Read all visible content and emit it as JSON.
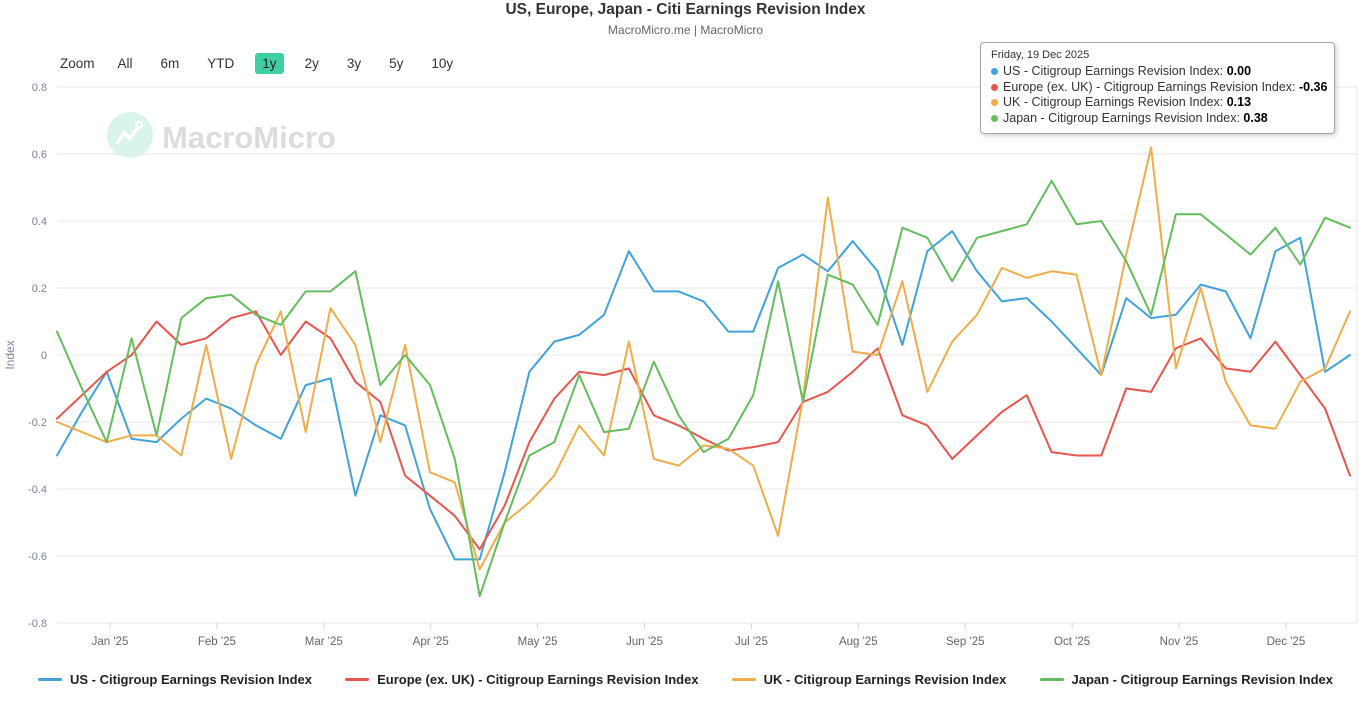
{
  "header": {
    "title": "US, Europe, Japan - Citi Earnings Revision Index",
    "subtitle": "MacroMicro.me | MacroMicro"
  },
  "toolbar": {
    "zoom_label": "Zoom",
    "ranges": [
      {
        "label": "All",
        "selected": false
      },
      {
        "label": "6m",
        "selected": false
      },
      {
        "label": "YTD",
        "selected": false
      },
      {
        "label": "1y",
        "selected": true
      },
      {
        "label": "2y",
        "selected": false
      },
      {
        "label": "3y",
        "selected": false
      },
      {
        "label": "5y",
        "selected": false
      },
      {
        "label": "10y",
        "selected": false
      }
    ]
  },
  "watermark": {
    "text": "MacroMicro"
  },
  "tooltip": {
    "date": "Friday, 19 Dec 2025",
    "items": [
      {
        "name": "US - Citigroup Earnings Revision Index",
        "value": "0.00",
        "color": "#41A3DC"
      },
      {
        "name": "Europe (ex. UK) - Citigroup Earnings Revision Index",
        "value": "-0.36",
        "color": "#E8564E"
      },
      {
        "name": "UK - Citigroup Earnings Revision Index",
        "value": "0.13",
        "color": "#F0AD4A"
      },
      {
        "name": "Japan - Citigroup Earnings Revision Index",
        "value": "0.38",
        "color": "#65BE5E"
      }
    ]
  },
  "chart_data": {
    "type": "line",
    "title": "US, Europe, Japan - Citi Earnings Revision Index",
    "ylabel": "Index",
    "ylim": [
      -0.8,
      0.8
    ],
    "y_ticks": [
      0.8,
      0.6,
      0.4,
      0.2,
      0,
      -0.2,
      -0.4,
      -0.6,
      -0.8
    ],
    "x_ticks": [
      "Jan '25",
      "Feb '25",
      "Mar '25",
      "Apr '25",
      "May '25",
      "Jun '25",
      "Jul '25",
      "Aug '25",
      "Sep '25",
      "Oct '25",
      "Nov '25",
      "Dec '25"
    ],
    "sampling": "weekly",
    "legend_position": "bottom",
    "grid": true,
    "series": [
      {
        "name": "US - Citigroup Earnings Revision Index",
        "color": "#41A3DC",
        "values": [
          -0.3,
          -0.17,
          -0.05,
          -0.25,
          -0.26,
          -0.19,
          -0.13,
          -0.16,
          -0.21,
          -0.25,
          -0.09,
          -0.07,
          -0.42,
          -0.18,
          -0.21,
          -0.46,
          -0.61,
          -0.61,
          -0.35,
          -0.05,
          0.04,
          0.06,
          0.12,
          0.31,
          0.19,
          0.19,
          0.16,
          0.07,
          0.07,
          0.26,
          0.3,
          0.25,
          0.34,
          0.25,
          0.03,
          0.31,
          0.37,
          0.25,
          0.16,
          0.17,
          0.1,
          0.02,
          -0.06,
          0.17,
          0.11,
          0.12,
          0.21,
          0.19,
          0.05,
          0.31,
          0.35,
          -0.05,
          0.0
        ]
      },
      {
        "name": "Europe (ex. UK) - Citigroup Earnings Revision Index",
        "color": "#E8564E",
        "values": [
          -0.19,
          -0.12,
          -0.05,
          0.0,
          0.1,
          0.03,
          0.05,
          0.11,
          0.13,
          0.0,
          0.1,
          0.05,
          -0.08,
          -0.14,
          -0.36,
          -0.42,
          -0.48,
          -0.58,
          -0.45,
          -0.26,
          -0.13,
          -0.05,
          -0.06,
          -0.04,
          -0.18,
          -0.21,
          -0.25,
          -0.285,
          -0.275,
          -0.26,
          -0.14,
          -0.11,
          -0.05,
          0.02,
          -0.18,
          -0.21,
          -0.31,
          -0.24,
          -0.17,
          -0.12,
          -0.29,
          -0.3,
          -0.3,
          -0.1,
          -0.11,
          0.02,
          0.05,
          -0.04,
          -0.05,
          0.04,
          -0.06,
          -0.16,
          -0.36
        ]
      },
      {
        "name": "UK - Citigroup Earnings Revision Index",
        "color": "#F0AD4A",
        "values": [
          -0.2,
          -0.23,
          -0.26,
          -0.24,
          -0.24,
          -0.3,
          0.03,
          -0.31,
          -0.03,
          0.13,
          -0.23,
          0.14,
          0.03,
          -0.26,
          0.03,
          -0.35,
          -0.38,
          -0.64,
          -0.5,
          -0.44,
          -0.36,
          -0.21,
          -0.3,
          0.04,
          -0.31,
          -0.33,
          -0.27,
          -0.28,
          -0.33,
          -0.54,
          -0.13,
          0.47,
          0.01,
          0.0,
          0.22,
          -0.11,
          0.04,
          0.12,
          0.26,
          0.23,
          0.25,
          0.24,
          -0.06,
          0.3,
          0.62,
          -0.04,
          0.2,
          -0.08,
          -0.21,
          -0.22,
          -0.08,
          -0.04,
          0.13
        ]
      },
      {
        "name": "Japan - Citigroup Earnings Revision Index",
        "color": "#65BE5E",
        "values": [
          0.07,
          -0.1,
          -0.26,
          0.05,
          -0.24,
          0.11,
          0.17,
          0.18,
          0.12,
          0.09,
          0.19,
          0.19,
          0.25,
          -0.09,
          0.0,
          -0.09,
          -0.31,
          -0.72,
          -0.5,
          -0.3,
          -0.26,
          -0.06,
          -0.23,
          -0.22,
          -0.02,
          -0.18,
          -0.29,
          -0.25,
          -0.12,
          0.22,
          -0.14,
          0.24,
          0.21,
          0.09,
          0.38,
          0.35,
          0.22,
          0.35,
          0.37,
          0.39,
          0.52,
          0.39,
          0.4,
          0.28,
          0.12,
          0.42,
          0.42,
          0.36,
          0.3,
          0.38,
          0.27,
          0.41,
          0.38
        ]
      }
    ]
  }
}
